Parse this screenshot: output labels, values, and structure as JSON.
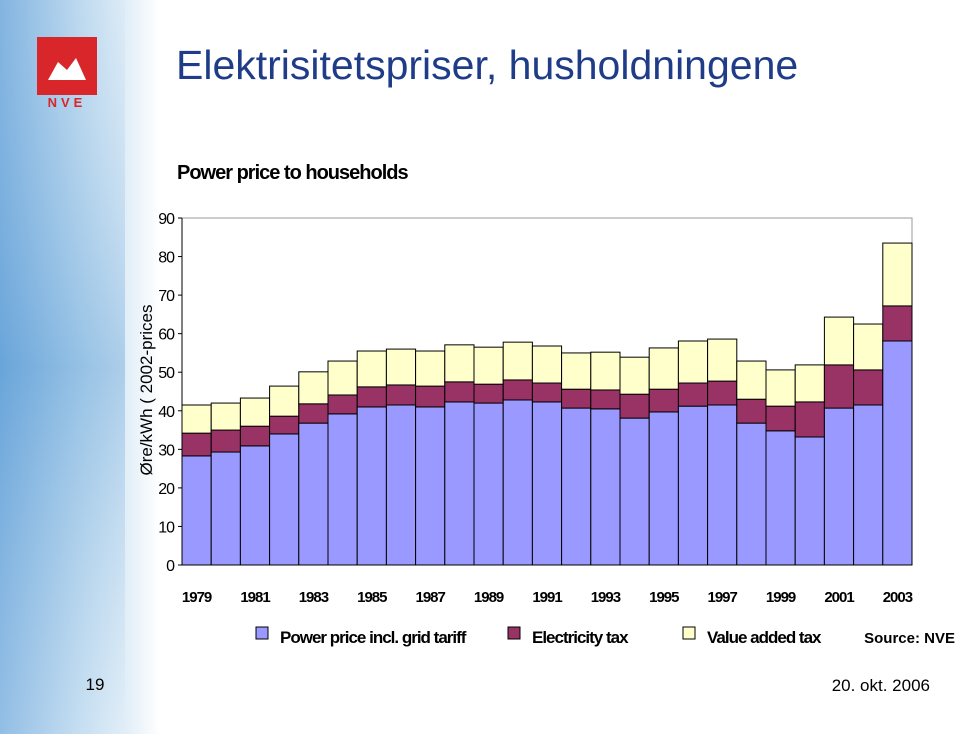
{
  "slide": {
    "title": "Elektrisitetspriser, husholdningene",
    "logo": "NVE",
    "page_number": "19",
    "date": "20. okt. 2006"
  },
  "chart_data": {
    "type": "stacked-bar",
    "title": "Power price to households",
    "y_label": "Øre/kWh ( 2002-prices",
    "source": "Source: NVE",
    "categories": [
      "1979",
      null,
      "1981",
      null,
      "1983",
      null,
      "1985",
      null,
      "1987",
      null,
      "1989",
      null,
      "1991",
      null,
      "1993",
      null,
      "1995",
      null,
      "1997",
      null,
      "1999",
      null,
      "2001",
      null,
      "2003"
    ],
    "ylim": [
      0,
      90
    ],
    "yticks": [
      0,
      10,
      20,
      30,
      40,
      50,
      60,
      70,
      80,
      90
    ],
    "series": [
      {
        "name": "Power price incl. grid tariff",
        "color": "#9999ff",
        "values": [
          28.3,
          29.3,
          30.9,
          34.0,
          36.8,
          39.2,
          41.0,
          41.5,
          41.0,
          42.3,
          42.0,
          42.8,
          42.3,
          40.7,
          40.5,
          38.1,
          39.7,
          41.2,
          41.5,
          36.8,
          34.8,
          33.2,
          40.7,
          41.5,
          58.1
        ]
      },
      {
        "name": "Electricity tax",
        "color": "#993366",
        "values": [
          5.9,
          5.7,
          5.1,
          4.6,
          5.0,
          4.9,
          5.2,
          5.2,
          5.4,
          5.2,
          4.9,
          5.2,
          4.9,
          4.9,
          4.9,
          6.2,
          5.9,
          6.0,
          6.2,
          6.2,
          6.4,
          9.1,
          11.2,
          9.1,
          9.1
        ]
      },
      {
        "name": "Value added tax",
        "color": "#ffffcc",
        "values": [
          7.3,
          7.0,
          7.3,
          7.8,
          8.3,
          8.8,
          9.3,
          9.3,
          9.1,
          9.6,
          9.6,
          9.8,
          9.6,
          9.4,
          9.8,
          9.6,
          10.7,
          10.9,
          10.9,
          9.9,
          9.4,
          9.6,
          12.4,
          11.9,
          16.3
        ]
      }
    ]
  }
}
